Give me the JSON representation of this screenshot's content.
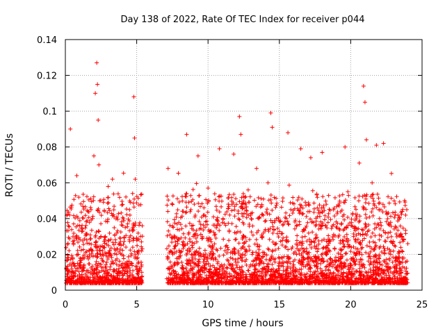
{
  "chart_data": {
    "type": "scatter",
    "title": "Day 138 of 2022, Rate Of TEC Index for receiver p044",
    "xlabel": "GPS time / hours",
    "ylabel": "ROTI / TECUs",
    "xlim": [
      0,
      25
    ],
    "ylim": [
      0,
      0.14
    ],
    "x_ticks": [
      "0",
      "5",
      "10",
      "15",
      "20",
      "25"
    ],
    "y_ticks": [
      "0",
      "0.02",
      "0.04",
      "0.06",
      "0.08",
      "0.1",
      "0.12",
      "0.14"
    ],
    "grid": true,
    "legend": "none",
    "marker": "+",
    "color": "#ff0000",
    "data_gap_hours": [
      5.4,
      7.1
    ],
    "series": [
      {
        "x": [
          0.1,
          0.3,
          0.35,
          0.6,
          0.8,
          0.9,
          1.2,
          1.5,
          1.8,
          2.0,
          2.1,
          2.2,
          2.25,
          2.3,
          2.35,
          2.4,
          2.5,
          2.6,
          2.8,
          3.0,
          3.3,
          3.6,
          3.9,
          4.2,
          4.5,
          4.8,
          4.85,
          4.9,
          5.1,
          7.2,
          8.3,
          8.5,
          8.8,
          9.0,
          9.3,
          9.6,
          10.0,
          10.5,
          10.8,
          11.3,
          11.8,
          12.2,
          12.3,
          12.6,
          13.1,
          13.4,
          13.8,
          14.2,
          14.4,
          14.5,
          14.8,
          15.2,
          15.6,
          15.8,
          16.2,
          16.5,
          16.8,
          17.2,
          17.6,
          18.0,
          18.4,
          18.8,
          19.3,
          19.6,
          19.8,
          20.2,
          20.6,
          20.9,
          21.0,
          21.1,
          21.5,
          21.8,
          22.0,
          22.3,
          22.8,
          23.2,
          23.6,
          24.0
        ],
        "y": [
          0.012,
          0.042,
          0.09,
          0.015,
          0.064,
          0.02,
          0.018,
          0.028,
          0.045,
          0.075,
          0.11,
          0.127,
          0.115,
          0.095,
          0.07,
          0.05,
          0.03,
          0.022,
          0.03,
          0.058,
          0.062,
          0.02,
          0.025,
          0.035,
          0.045,
          0.108,
          0.085,
          0.062,
          0.015,
          0.068,
          0.012,
          0.087,
          0.045,
          0.02,
          0.075,
          0.03,
          0.057,
          0.018,
          0.079,
          0.025,
          0.076,
          0.097,
          0.087,
          0.048,
          0.02,
          0.068,
          0.03,
          0.06,
          0.099,
          0.091,
          0.04,
          0.015,
          0.088,
          0.045,
          0.02,
          0.079,
          0.03,
          0.074,
          0.018,
          0.077,
          0.025,
          0.045,
          0.02,
          0.08,
          0.055,
          0.03,
          0.071,
          0.114,
          0.105,
          0.084,
          0.06,
          0.081,
          0.045,
          0.082,
          0.02,
          0.035,
          0.03,
          0.026
        ]
      }
    ]
  }
}
